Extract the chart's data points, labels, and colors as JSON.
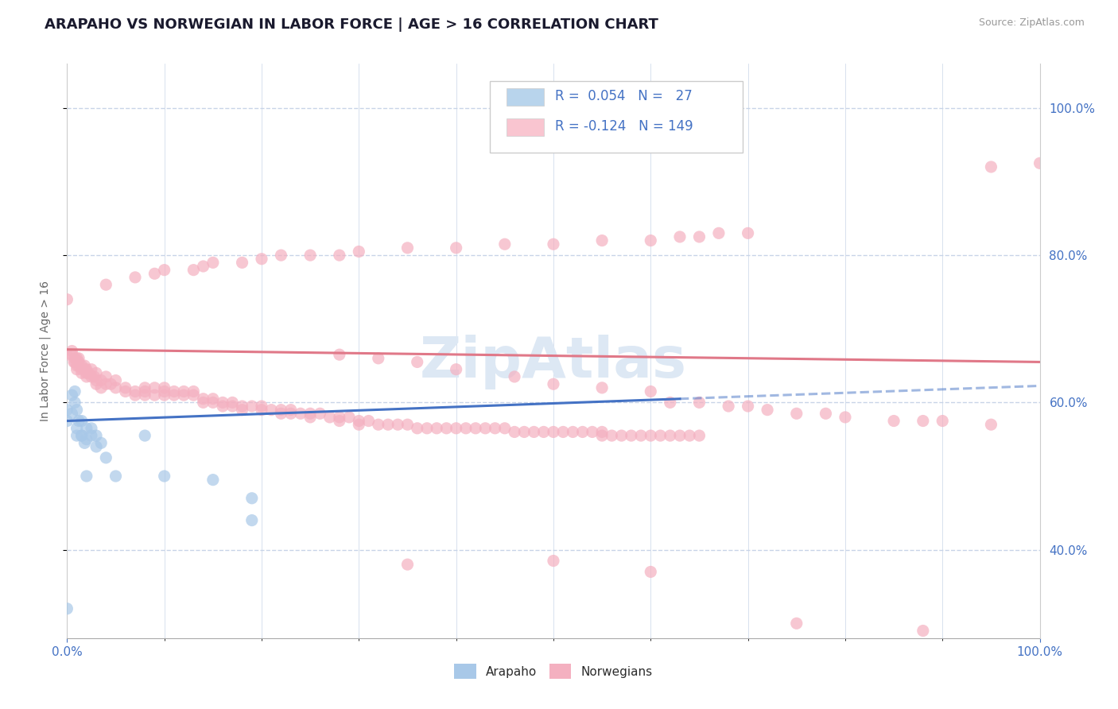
{
  "title": "ARAPAHO VS NORWEGIAN IN LABOR FORCE | AGE > 16 CORRELATION CHART",
  "source_text": "Source: ZipAtlas.com",
  "ylabel": "In Labor Force | Age > 16",
  "xlim": [
    0.0,
    1.0
  ],
  "ylim": [
    0.28,
    1.06
  ],
  "ytick_values": [
    0.4,
    0.6,
    0.8,
    1.0
  ],
  "arapaho_color": "#a8c8e8",
  "norwegian_color": "#f4b0c0",
  "arapaho_line_color": "#4472c4",
  "norwegian_line_color": "#e07888",
  "arapaho_legend_color": "#b8d4ec",
  "norwegian_legend_color": "#f9c5d0",
  "background_color": "#ffffff",
  "grid_color": "#c8d4e8",
  "title_color": "#1a1a2e",
  "tick_color": "#4472c4",
  "legend_R_color": "#4472c4",
  "watermark_color": "#dde8f4",
  "arapaho_scatter": [
    [
      0.0,
      0.575
    ],
    [
      0.0,
      0.59
    ],
    [
      0.005,
      0.61
    ],
    [
      0.005,
      0.585
    ],
    [
      0.008,
      0.6
    ],
    [
      0.008,
      0.615
    ],
    [
      0.01,
      0.59
    ],
    [
      0.01,
      0.565
    ],
    [
      0.01,
      0.555
    ],
    [
      0.012,
      0.575
    ],
    [
      0.015,
      0.555
    ],
    [
      0.015,
      0.575
    ],
    [
      0.015,
      0.555
    ],
    [
      0.018,
      0.545
    ],
    [
      0.02,
      0.565
    ],
    [
      0.02,
      0.55
    ],
    [
      0.02,
      0.5
    ],
    [
      0.025,
      0.565
    ],
    [
      0.025,
      0.555
    ],
    [
      0.03,
      0.54
    ],
    [
      0.03,
      0.555
    ],
    [
      0.035,
      0.545
    ],
    [
      0.04,
      0.525
    ],
    [
      0.05,
      0.5
    ],
    [
      0.08,
      0.555
    ],
    [
      0.1,
      0.5
    ],
    [
      0.15,
      0.495
    ],
    [
      0.19,
      0.47
    ],
    [
      0.0,
      0.32
    ],
    [
      0.19,
      0.44
    ]
  ],
  "norwegian_scatter": [
    [
      0.0,
      0.665
    ],
    [
      0.005,
      0.67
    ],
    [
      0.005,
      0.665
    ],
    [
      0.007,
      0.655
    ],
    [
      0.008,
      0.66
    ],
    [
      0.008,
      0.655
    ],
    [
      0.01,
      0.66
    ],
    [
      0.01,
      0.65
    ],
    [
      0.01,
      0.645
    ],
    [
      0.012,
      0.66
    ],
    [
      0.012,
      0.655
    ],
    [
      0.012,
      0.65
    ],
    [
      0.015,
      0.65
    ],
    [
      0.015,
      0.645
    ],
    [
      0.015,
      0.64
    ],
    [
      0.018,
      0.65
    ],
    [
      0.018,
      0.645
    ],
    [
      0.02,
      0.645
    ],
    [
      0.02,
      0.64
    ],
    [
      0.02,
      0.635
    ],
    [
      0.022,
      0.64
    ],
    [
      0.025,
      0.645
    ],
    [
      0.025,
      0.635
    ],
    [
      0.028,
      0.635
    ],
    [
      0.03,
      0.64
    ],
    [
      0.03,
      0.63
    ],
    [
      0.03,
      0.625
    ],
    [
      0.035,
      0.63
    ],
    [
      0.035,
      0.62
    ],
    [
      0.04,
      0.635
    ],
    [
      0.04,
      0.625
    ],
    [
      0.045,
      0.625
    ],
    [
      0.05,
      0.63
    ],
    [
      0.05,
      0.62
    ],
    [
      0.06,
      0.62
    ],
    [
      0.06,
      0.615
    ],
    [
      0.07,
      0.615
    ],
    [
      0.07,
      0.61
    ],
    [
      0.08,
      0.62
    ],
    [
      0.08,
      0.615
    ],
    [
      0.08,
      0.61
    ],
    [
      0.09,
      0.62
    ],
    [
      0.09,
      0.61
    ],
    [
      0.1,
      0.62
    ],
    [
      0.1,
      0.615
    ],
    [
      0.1,
      0.61
    ],
    [
      0.11,
      0.615
    ],
    [
      0.11,
      0.61
    ],
    [
      0.12,
      0.615
    ],
    [
      0.12,
      0.61
    ],
    [
      0.13,
      0.615
    ],
    [
      0.13,
      0.61
    ],
    [
      0.14,
      0.605
    ],
    [
      0.14,
      0.6
    ],
    [
      0.15,
      0.605
    ],
    [
      0.15,
      0.6
    ],
    [
      0.16,
      0.6
    ],
    [
      0.16,
      0.595
    ],
    [
      0.17,
      0.6
    ],
    [
      0.17,
      0.595
    ],
    [
      0.18,
      0.595
    ],
    [
      0.18,
      0.59
    ],
    [
      0.19,
      0.595
    ],
    [
      0.2,
      0.595
    ],
    [
      0.2,
      0.59
    ],
    [
      0.21,
      0.59
    ],
    [
      0.22,
      0.59
    ],
    [
      0.22,
      0.585
    ],
    [
      0.23,
      0.59
    ],
    [
      0.23,
      0.585
    ],
    [
      0.24,
      0.585
    ],
    [
      0.25,
      0.585
    ],
    [
      0.25,
      0.58
    ],
    [
      0.26,
      0.585
    ],
    [
      0.27,
      0.58
    ],
    [
      0.28,
      0.58
    ],
    [
      0.28,
      0.575
    ],
    [
      0.29,
      0.58
    ],
    [
      0.3,
      0.575
    ],
    [
      0.3,
      0.57
    ],
    [
      0.31,
      0.575
    ],
    [
      0.32,
      0.57
    ],
    [
      0.33,
      0.57
    ],
    [
      0.34,
      0.57
    ],
    [
      0.35,
      0.57
    ],
    [
      0.36,
      0.565
    ],
    [
      0.37,
      0.565
    ],
    [
      0.38,
      0.565
    ],
    [
      0.39,
      0.565
    ],
    [
      0.4,
      0.565
    ],
    [
      0.41,
      0.565
    ],
    [
      0.42,
      0.565
    ],
    [
      0.43,
      0.565
    ],
    [
      0.44,
      0.565
    ],
    [
      0.45,
      0.565
    ],
    [
      0.46,
      0.56
    ],
    [
      0.47,
      0.56
    ],
    [
      0.48,
      0.56
    ],
    [
      0.49,
      0.56
    ],
    [
      0.5,
      0.56
    ],
    [
      0.51,
      0.56
    ],
    [
      0.52,
      0.56
    ],
    [
      0.53,
      0.56
    ],
    [
      0.54,
      0.56
    ],
    [
      0.55,
      0.555
    ],
    [
      0.55,
      0.56
    ],
    [
      0.56,
      0.555
    ],
    [
      0.57,
      0.555
    ],
    [
      0.58,
      0.555
    ],
    [
      0.59,
      0.555
    ],
    [
      0.6,
      0.555
    ],
    [
      0.61,
      0.555
    ],
    [
      0.62,
      0.555
    ],
    [
      0.63,
      0.555
    ],
    [
      0.64,
      0.555
    ],
    [
      0.65,
      0.555
    ],
    [
      0.0,
      0.74
    ],
    [
      0.04,
      0.76
    ],
    [
      0.07,
      0.77
    ],
    [
      0.09,
      0.775
    ],
    [
      0.1,
      0.78
    ],
    [
      0.13,
      0.78
    ],
    [
      0.14,
      0.785
    ],
    [
      0.15,
      0.79
    ],
    [
      0.18,
      0.79
    ],
    [
      0.2,
      0.795
    ],
    [
      0.22,
      0.8
    ],
    [
      0.25,
      0.8
    ],
    [
      0.28,
      0.8
    ],
    [
      0.3,
      0.805
    ],
    [
      0.35,
      0.81
    ],
    [
      0.4,
      0.81
    ],
    [
      0.45,
      0.815
    ],
    [
      0.5,
      0.815
    ],
    [
      0.55,
      0.82
    ],
    [
      0.6,
      0.82
    ],
    [
      0.63,
      0.825
    ],
    [
      0.65,
      0.825
    ],
    [
      0.67,
      0.83
    ],
    [
      0.7,
      0.83
    ],
    [
      0.28,
      0.665
    ],
    [
      0.32,
      0.66
    ],
    [
      0.36,
      0.655
    ],
    [
      0.4,
      0.645
    ],
    [
      0.46,
      0.635
    ],
    [
      0.5,
      0.625
    ],
    [
      0.55,
      0.62
    ],
    [
      0.6,
      0.615
    ],
    [
      0.62,
      0.6
    ],
    [
      0.65,
      0.6
    ],
    [
      0.68,
      0.595
    ],
    [
      0.7,
      0.595
    ],
    [
      0.72,
      0.59
    ],
    [
      0.75,
      0.585
    ],
    [
      0.78,
      0.585
    ],
    [
      0.8,
      0.58
    ],
    [
      0.85,
      0.575
    ],
    [
      0.88,
      0.575
    ],
    [
      0.9,
      0.575
    ],
    [
      0.95,
      0.57
    ],
    [
      0.35,
      0.38
    ],
    [
      0.5,
      0.385
    ],
    [
      0.6,
      0.37
    ],
    [
      0.75,
      0.3
    ],
    [
      0.88,
      0.29
    ],
    [
      0.95,
      0.92
    ],
    [
      1.0,
      0.925
    ]
  ]
}
